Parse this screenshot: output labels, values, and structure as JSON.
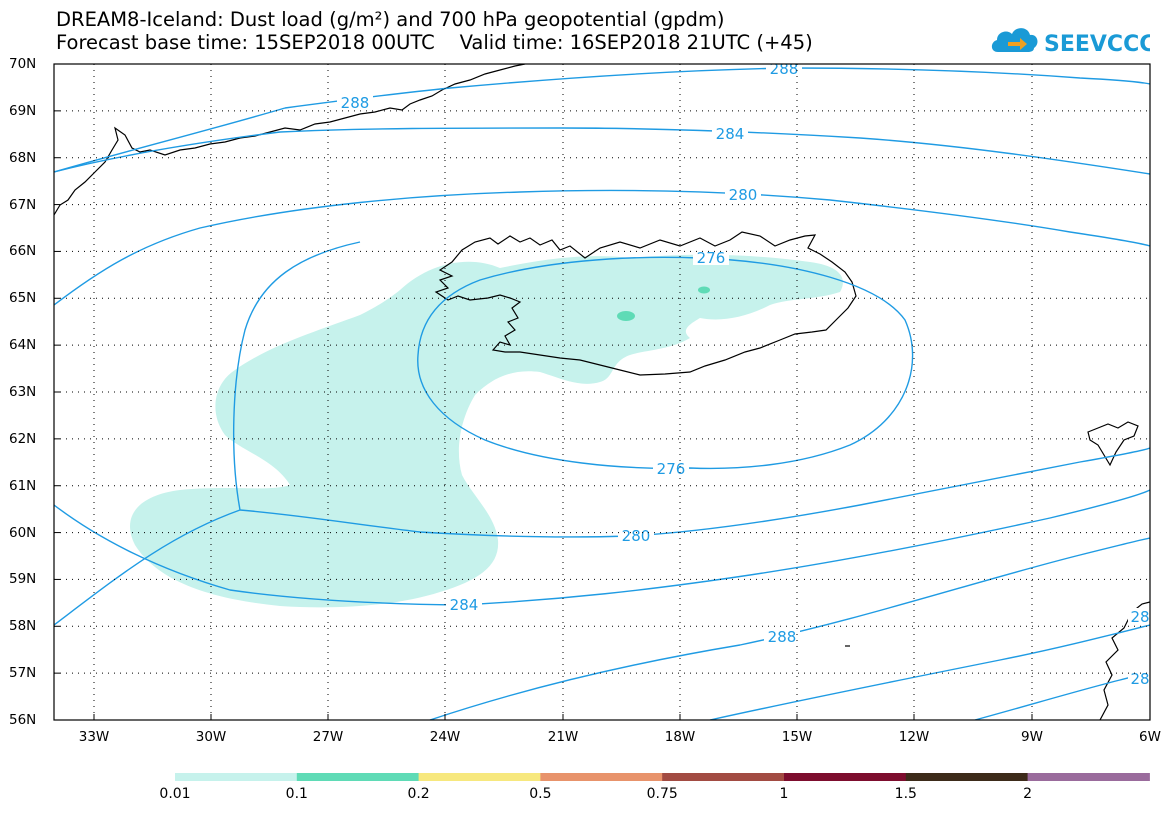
{
  "title": {
    "line1": "DREAM8-Iceland: Dust load (g/m²) and 700 hPa geopotential (gpdm)",
    "line2": "Forecast base time: 15SEP2018 00UTC    Valid time: 16SEP2018 21UTC (+45)"
  },
  "logo": {
    "text": "SEEVCCC",
    "icon": "cloud-arrow-icon",
    "color": "#1a9ad6"
  },
  "map": {
    "lat_labels": [
      "70N",
      "69N",
      "68N",
      "67N",
      "66N",
      "65N",
      "64N",
      "63N",
      "62N",
      "61N",
      "60N",
      "59N",
      "58N",
      "57N",
      "56N"
    ],
    "lon_labels": [
      "33W",
      "30W",
      "27W",
      "24W",
      "21W",
      "18W",
      "15W",
      "12W",
      "9W",
      "6W"
    ],
    "contour_color": "#1f9be3",
    "dust_fill_color": "#c6f2ec",
    "dust_core_color": "#5fdbb6",
    "contour_labels": [
      "288",
      "288",
      "284",
      "280",
      "276",
      "276",
      "280",
      "284",
      "288",
      "28",
      "28"
    ],
    "coastline_color": "#000000"
  },
  "colorbar": {
    "labels": [
      "0.01",
      "0.1",
      "0.2",
      "0.5",
      "0.75",
      "1",
      "1.5",
      "2"
    ],
    "colors": [
      "#c6f2ec",
      "#5fdbb6",
      "#f7e87e",
      "#e8936b",
      "#a24b42",
      "#7d0d2e",
      "#3d2b1a",
      "#9a6b9c"
    ]
  }
}
